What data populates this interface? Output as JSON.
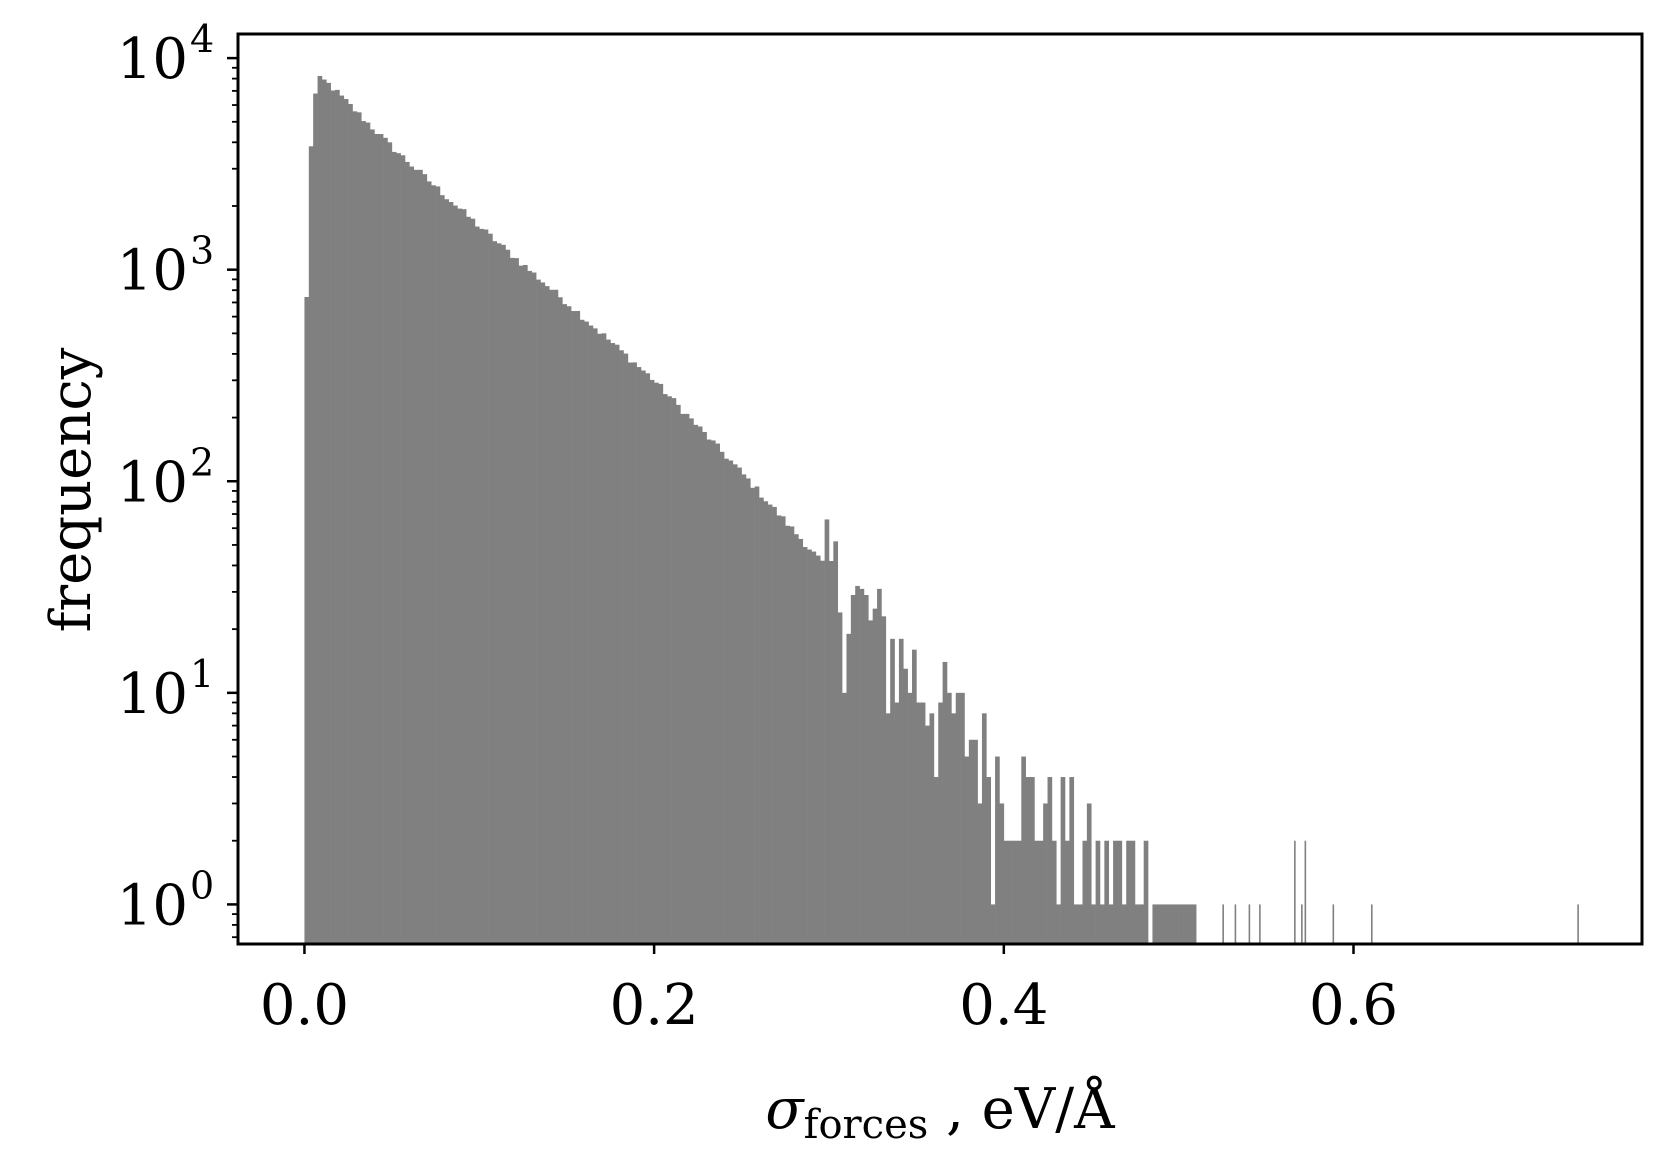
{
  "chart_data": {
    "type": "bar",
    "subtype": "histogram",
    "xlabel": {
      "symbol": "σ",
      "subscript": "forces",
      "rest": " ,  eV/Å"
    },
    "ylabel": "frequency",
    "xlim": [
      -0.038,
      0.765
    ],
    "ylim": [
      0.65,
      13000
    ],
    "yscale": "log",
    "x_ticks": [
      {
        "value": 0.0,
        "label": "0.0"
      },
      {
        "value": 0.2,
        "label": "0.2"
      },
      {
        "value": 0.4,
        "label": "0.4"
      },
      {
        "value": 0.6,
        "label": "0.6"
      }
    ],
    "y_ticks": [
      {
        "value": 1,
        "base": "10",
        "exp": "0"
      },
      {
        "value": 10,
        "base": "10",
        "exp": "1"
      },
      {
        "value": 100,
        "base": "10",
        "exp": "2"
      },
      {
        "value": 1000,
        "base": "10",
        "exp": "3"
      },
      {
        "value": 10000,
        "base": "10",
        "exp": "4"
      }
    ],
    "bar_color": "#808080",
    "grid": false,
    "bin_width": 0.0025,
    "profile": [
      {
        "x": 0.0,
        "y": 1
      },
      {
        "x": 0.001,
        "y": 600
      },
      {
        "x": 0.003,
        "y": 3000
      },
      {
        "x": 0.005,
        "y": 6000
      },
      {
        "x": 0.008,
        "y": 7900
      },
      {
        "x": 0.01,
        "y": 7950
      },
      {
        "x": 0.015,
        "y": 7400
      },
      {
        "x": 0.02,
        "y": 6700
      },
      {
        "x": 0.05,
        "y": 3800
      },
      {
        "x": 0.1,
        "y": 1600
      },
      {
        "x": 0.15,
        "y": 700
      },
      {
        "x": 0.2,
        "y": 300
      },
      {
        "x": 0.25,
        "y": 110
      },
      {
        "x": 0.3,
        "y": 38
      },
      {
        "x": 0.35,
        "y": 12
      },
      {
        "x": 0.4,
        "y": 4
      },
      {
        "x": 0.45,
        "y": 1.8
      },
      {
        "x": 0.5,
        "y": 1
      }
    ],
    "sparse_bars": [
      {
        "x": 0.525,
        "y": 1
      },
      {
        "x": 0.532,
        "y": 1
      },
      {
        "x": 0.54,
        "y": 1
      },
      {
        "x": 0.546,
        "y": 1
      },
      {
        "x": 0.566,
        "y": 2
      },
      {
        "x": 0.57,
        "y": 1
      },
      {
        "x": 0.572,
        "y": 2
      },
      {
        "x": 0.588,
        "y": 1
      },
      {
        "x": 0.61,
        "y": 1
      },
      {
        "x": 0.728,
        "y": 1
      }
    ]
  }
}
